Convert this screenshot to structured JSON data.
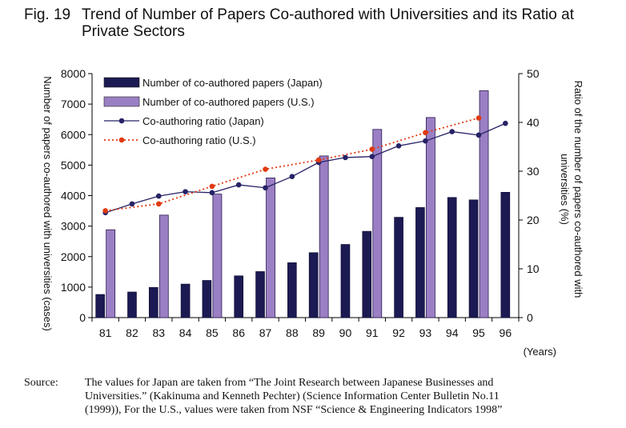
{
  "figure": {
    "label": "Fig. 19",
    "title_line1": "Trend of Number of Papers Co-authored with Universities and its Ratio at",
    "title_line2": "Private Sectors"
  },
  "chart_data": {
    "type": "bar",
    "categories": [
      "81",
      "82",
      "83",
      "84",
      "85",
      "86",
      "87",
      "88",
      "89",
      "90",
      "91",
      "92",
      "93",
      "94",
      "95",
      "96"
    ],
    "xlabel": "(Years)",
    "ylabel_left": "Number of papers co-authored with universities (cases)",
    "ylabel_right": "Ratio of the number of papers co-authored with universities (%)",
    "ylim_left": [
      0,
      8000
    ],
    "yticks_left": [
      0,
      1000,
      2000,
      3000,
      4000,
      5000,
      6000,
      7000,
      8000
    ],
    "ylim_right": [
      0,
      50
    ],
    "yticks_right": [
      0,
      10,
      20,
      30,
      40,
      50
    ],
    "grid": false,
    "legend_position": "top-left",
    "bar_series": [
      {
        "name": "Number of co-authored papers (Japan)",
        "color": "#1c1a52",
        "values": [
          760,
          840,
          990,
          1100,
          1220,
          1370,
          1510,
          1800,
          2130,
          2400,
          2830,
          3290,
          3610,
          3940,
          3860,
          4110
        ]
      },
      {
        "name": "Number of co-authored papers (U.S.)",
        "color": "#9b7fc4",
        "values": [
          2880,
          null,
          3360,
          null,
          4050,
          null,
          4580,
          null,
          5300,
          null,
          6170,
          null,
          6560,
          null,
          7440,
          null
        ]
      }
    ],
    "line_series": [
      {
        "name": "Co-authoring ratio (Japan)",
        "color": "#262266",
        "style": "solid",
        "axis": "right",
        "values": [
          21.5,
          23.3,
          24.9,
          25.8,
          25.6,
          27.2,
          26.6,
          28.9,
          31.8,
          32.8,
          33.0,
          35.2,
          36.2,
          38.1,
          37.4,
          39.8
        ]
      },
      {
        "name": "Co-authoring ratio (U.S.)",
        "color": "#e03a12",
        "style": "dotted",
        "axis": "right",
        "values": [
          21.9,
          null,
          23.3,
          null,
          26.9,
          null,
          30.4,
          null,
          32.3,
          null,
          34.5,
          null,
          37.9,
          null,
          40.9,
          null
        ]
      }
    ]
  },
  "source": {
    "label": "Source:",
    "line1": "The values for Japan are taken from “The Joint Research between Japanese Businesses and",
    "line2": "Universities.”    (Kakinuma and Kenneth Pechter) (Science Information Center Bulletin No.11",
    "line3": "(1999)), For the U.S., values were taken from NSF “Science & Engineering Indicators 1998”"
  }
}
